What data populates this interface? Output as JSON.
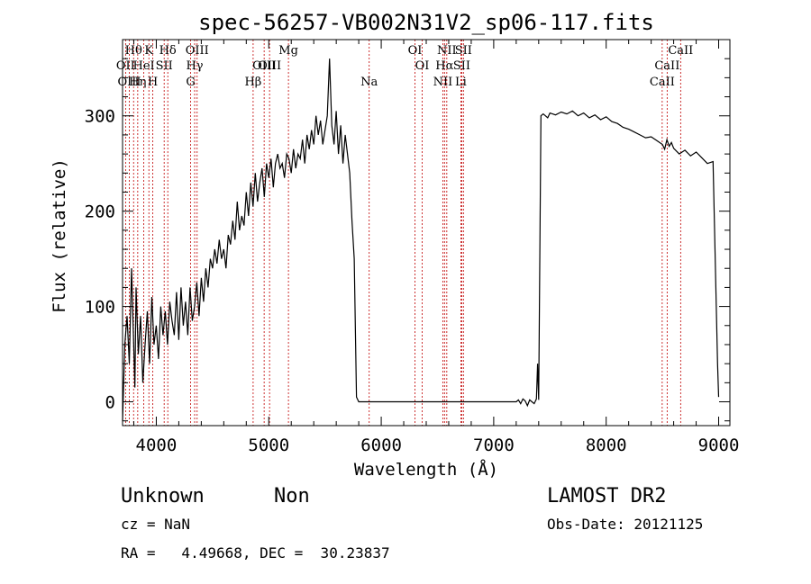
{
  "chart_data": {
    "type": "line",
    "title": "spec-56257-VB002N31V2_sp06-117.fits",
    "xlabel": "Wavelength (Å)",
    "ylabel": "Flux (relative)",
    "xlim": [
      3700,
      9100
    ],
    "ylim": [
      -25,
      380
    ],
    "x_ticks": [
      4000,
      5000,
      6000,
      7000,
      8000,
      9000
    ],
    "y_ticks": [
      0,
      100,
      200,
      300
    ],
    "grid": false,
    "legend": "none",
    "series": [
      {
        "color": "#000000",
        "x": [
          3700,
          3720,
          3740,
          3760,
          3780,
          3800,
          3810,
          3820,
          3840,
          3860,
          3880,
          3900,
          3920,
          3940,
          3960,
          3980,
          4000,
          4020,
          4040,
          4060,
          4080,
          4100,
          4120,
          4140,
          4160,
          4180,
          4200,
          4220,
          4240,
          4260,
          4280,
          4300,
          4320,
          4340,
          4360,
          4380,
          4400,
          4420,
          4440,
          4460,
          4480,
          4500,
          4520,
          4540,
          4560,
          4580,
          4600,
          4620,
          4640,
          4660,
          4680,
          4700,
          4720,
          4740,
          4760,
          4780,
          4800,
          4820,
          4840,
          4860,
          4880,
          4900,
          4920,
          4940,
          4960,
          4980,
          5000,
          5020,
          5040,
          5060,
          5080,
          5100,
          5120,
          5140,
          5160,
          5180,
          5200,
          5220,
          5240,
          5260,
          5280,
          5300,
          5320,
          5340,
          5360,
          5380,
          5400,
          5420,
          5440,
          5460,
          5480,
          5500,
          5520,
          5540,
          5560,
          5580,
          5600,
          5620,
          5640,
          5660,
          5680,
          5700,
          5720,
          5740,
          5760,
          5780,
          5800,
          5900,
          6000,
          6200,
          6400,
          6600,
          6800,
          7000,
          7200,
          7220,
          7240,
          7260,
          7280,
          7300,
          7320,
          7340,
          7360,
          7380,
          7390,
          7400,
          7420,
          7440,
          7460,
          7480,
          7500,
          7550,
          7600,
          7650,
          7700,
          7750,
          7800,
          7850,
          7900,
          7950,
          8000,
          8050,
          8100,
          8150,
          8200,
          8250,
          8300,
          8350,
          8400,
          8450,
          8500,
          8520,
          8540,
          8560,
          8580,
          8600,
          8650,
          8700,
          8750,
          8800,
          8850,
          8900,
          8950,
          8990,
          9000
        ],
        "y": [
          -20,
          60,
          90,
          40,
          140,
          55,
          15,
          120,
          50,
          90,
          20,
          60,
          95,
          40,
          110,
          60,
          80,
          45,
          100,
          70,
          95,
          60,
          105,
          85,
          70,
          115,
          65,
          120,
          80,
          105,
          70,
          120,
          85,
          100,
          125,
          90,
          130,
          105,
          140,
          120,
          150,
          140,
          160,
          145,
          170,
          150,
          160,
          140,
          175,
          165,
          190,
          170,
          210,
          180,
          195,
          185,
          220,
          195,
          230,
          205,
          240,
          210,
          230,
          245,
          215,
          250,
          235,
          255,
          225,
          250,
          260,
          245,
          250,
          235,
          260,
          255,
          240,
          265,
          245,
          260,
          255,
          275,
          250,
          280,
          265,
          285,
          270,
          300,
          280,
          295,
          270,
          285,
          300,
          360,
          290,
          270,
          305,
          260,
          290,
          250,
          280,
          260,
          240,
          190,
          150,
          5,
          0,
          0,
          0,
          0,
          0,
          0,
          0,
          0,
          0,
          2,
          -2,
          3,
          1,
          -4,
          2,
          0,
          -2,
          3,
          40,
          2,
          300,
          302,
          300,
          298,
          303,
          301,
          304,
          302,
          305,
          300,
          303,
          298,
          301,
          296,
          299,
          294,
          292,
          288,
          286,
          283,
          280,
          277,
          278,
          274,
          270,
          265,
          275,
          268,
          272,
          266,
          260,
          264,
          258,
          262,
          256,
          250,
          252,
          40,
          5
        ]
      }
    ],
    "line_markers": [
      {
        "label": "Hθ",
        "x": 3798,
        "row": 0
      },
      {
        "label": "OII",
        "x": 3727,
        "row": 1
      },
      {
        "label": "OIII",
        "x": 3760,
        "row": 2
      },
      {
        "label": "Hη",
        "x": 3835,
        "row": 2
      },
      {
        "label": "HeI",
        "x": 3889,
        "row": 1
      },
      {
        "label": "K",
        "x": 3934,
        "row": 0
      },
      {
        "label": "H",
        "x": 3969,
        "row": 2
      },
      {
        "label": "SII",
        "x": 4070,
        "row": 1
      },
      {
        "label": "Hδ",
        "x": 4102,
        "row": 0
      },
      {
        "label": "G",
        "x": 4305,
        "row": 2
      },
      {
        "label": "OIII",
        "x": 4363,
        "row": 0
      },
      {
        "label": "Hγ",
        "x": 4341,
        "row": 1
      },
      {
        "label": "Hβ",
        "x": 4861,
        "row": 2
      },
      {
        "label": "OIII",
        "x": 4959,
        "row": 1
      },
      {
        "label": "OIII",
        "x": 5007,
        "row": -1
      },
      {
        "label": "Mg",
        "x": 5175,
        "row": 0
      },
      {
        "label": "Na",
        "x": 5893,
        "row": 2
      },
      {
        "label": "OI",
        "x": 6300,
        "row": 0
      },
      {
        "label": "OI",
        "x": 6364,
        "row": 1
      },
      {
        "label": "NII",
        "x": 6548,
        "row": 2
      },
      {
        "label": "NII",
        "x": 6583,
        "row": 0
      },
      {
        "label": "Hα",
        "x": 6563,
        "row": 1
      },
      {
        "label": "SII",
        "x": 6716,
        "row": 1
      },
      {
        "label": "SII",
        "x": 6731,
        "row": 0
      },
      {
        "label": "Li",
        "x": 6708,
        "row": 2
      },
      {
        "label": "CaII",
        "x": 8498,
        "row": 2
      },
      {
        "label": "CaII",
        "x": 8542,
        "row": 1
      },
      {
        "label": "CaII",
        "x": 8662,
        "row": 0
      }
    ]
  },
  "footer": {
    "object_class": "Unknown",
    "subclass": "Non",
    "survey": "LAMOST DR2",
    "redshift": "cz = NaN",
    "obs_date": "Obs-Date: 20121125",
    "coordinates": "RA =   4.49668, DEC =  30.23837"
  }
}
